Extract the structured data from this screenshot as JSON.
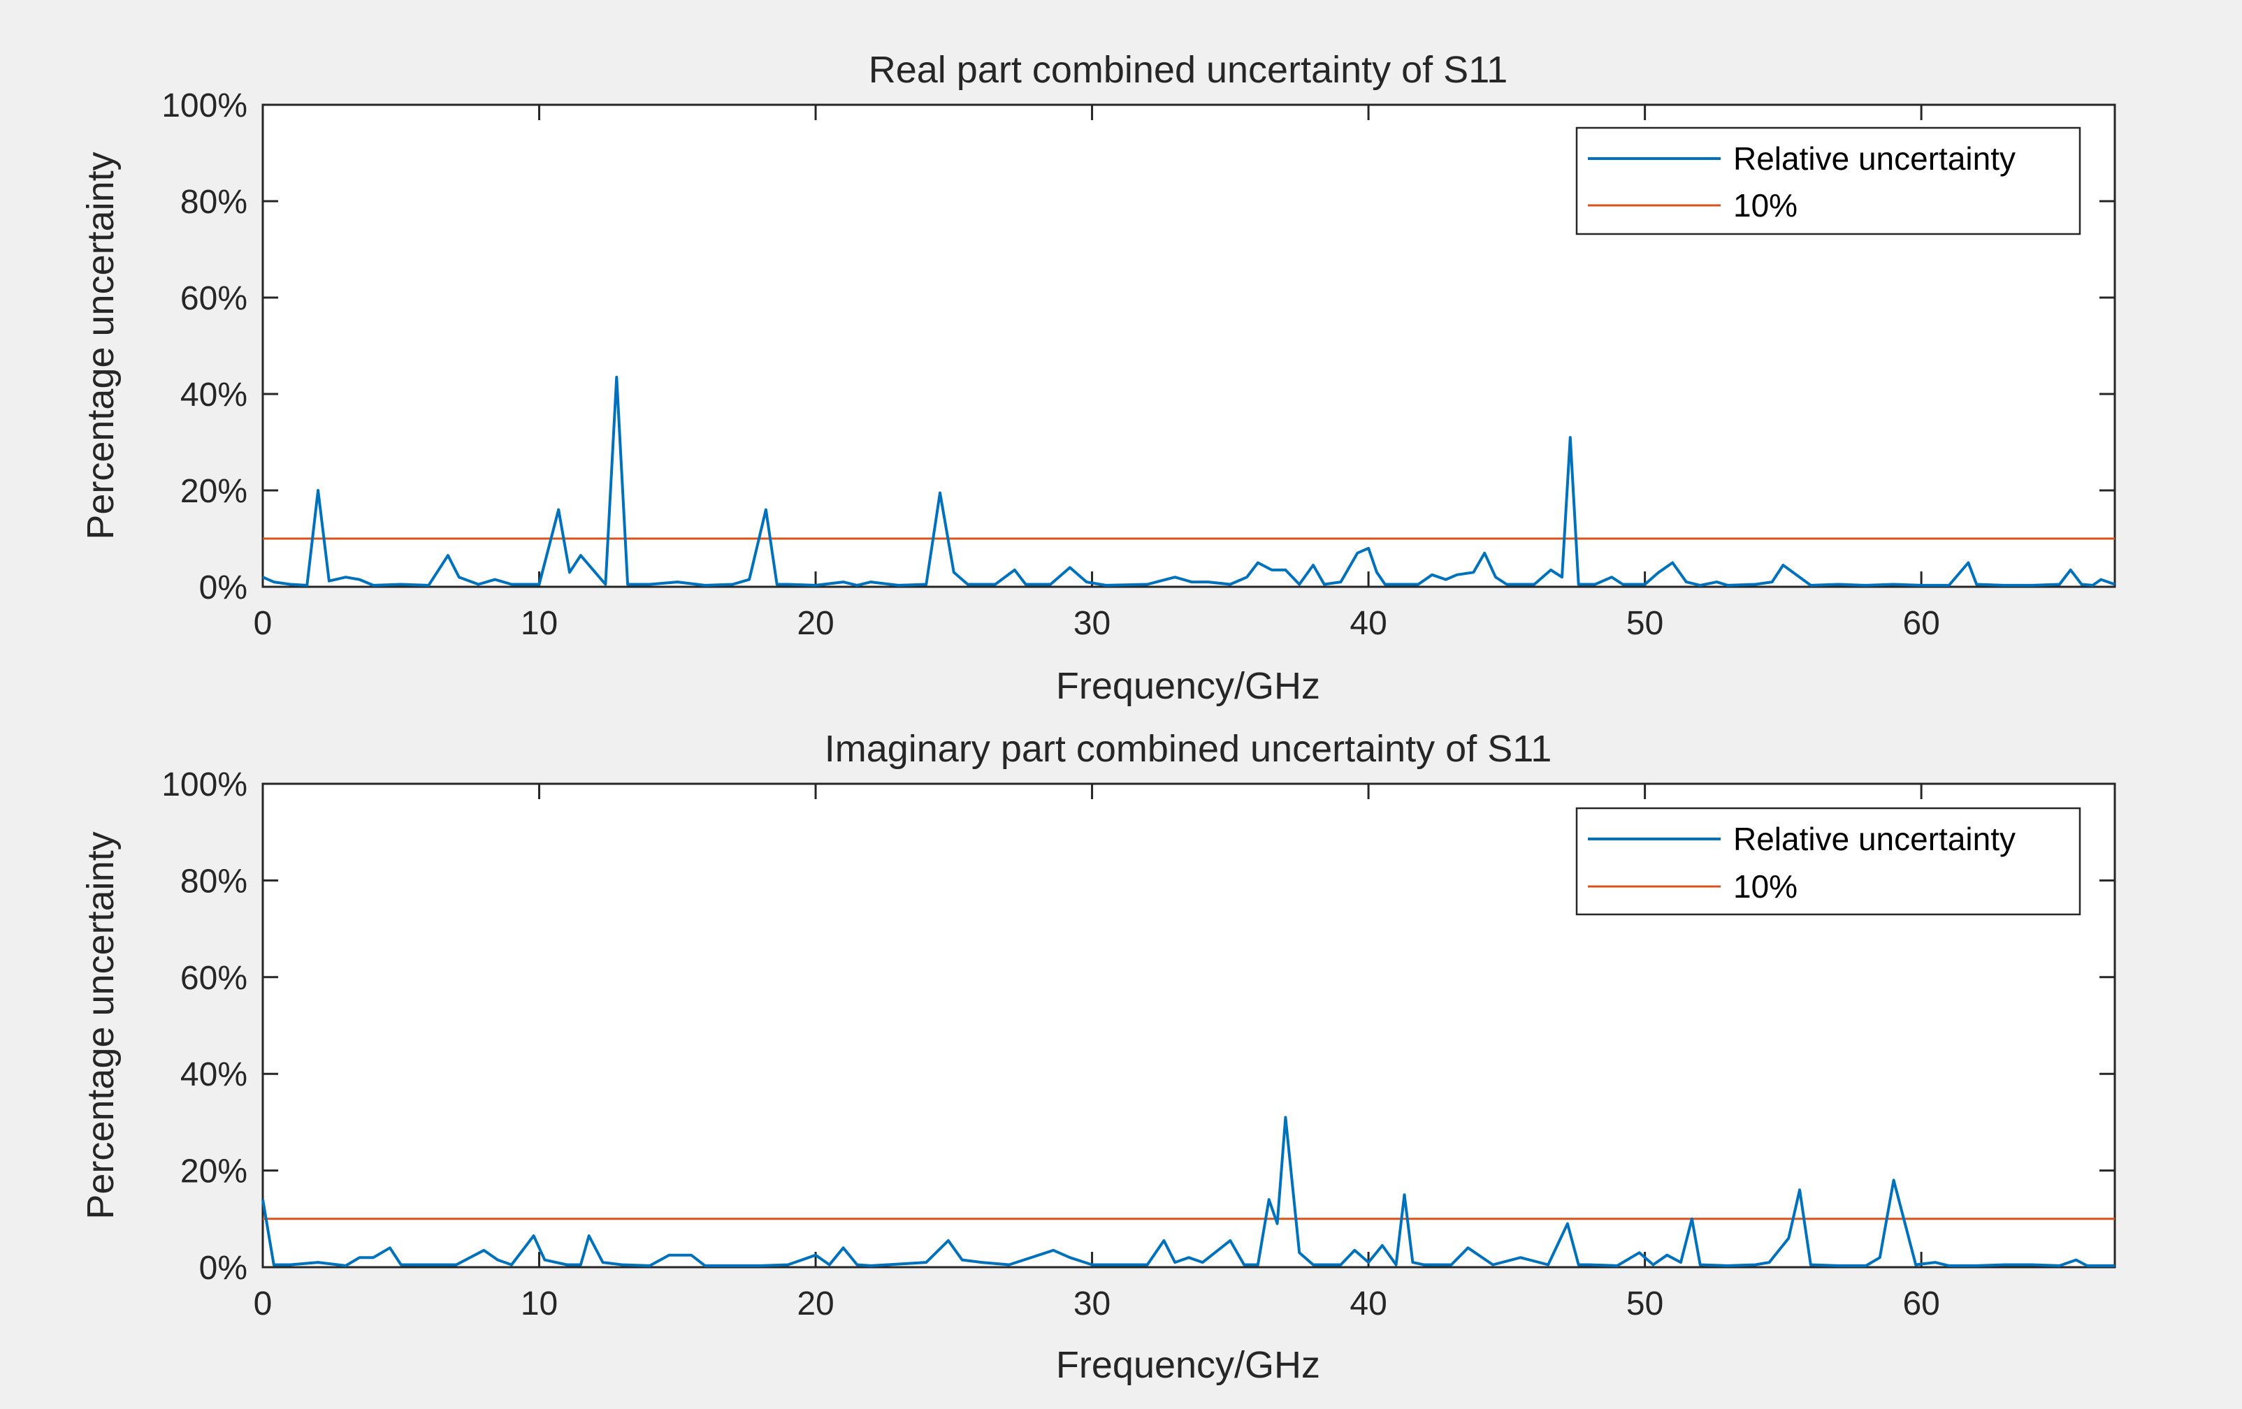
{
  "colors": {
    "figure_bg": "#f0f0f0",
    "axes_bg": "#ffffff",
    "axis": "#262626",
    "series_uncertainty": "#0072bd",
    "series_threshold": "#d95319"
  },
  "chart_data": [
    {
      "type": "line",
      "title": "Real part combined uncertainty of S11",
      "xlabel": "Frequency/GHz",
      "ylabel": "Percentage uncertainty",
      "xlim": [
        0,
        67
      ],
      "ylim": [
        0,
        100
      ],
      "xticks": [
        0,
        10,
        20,
        30,
        40,
        50,
        60
      ],
      "xtick_labels": [
        "0",
        "10",
        "20",
        "30",
        "40",
        "50",
        "60"
      ],
      "yticks": [
        0,
        20,
        40,
        60,
        80,
        100
      ],
      "ytick_labels": [
        "0%",
        "20%",
        "40%",
        "60%",
        "80%",
        "100%"
      ],
      "legend_position": "top-right",
      "series": [
        {
          "name": "Relative uncertainty",
          "x": [
            0,
            0.4,
            1.0,
            1.6,
            2.0,
            2.4,
            3.0,
            3.5,
            4.0,
            5.0,
            6.0,
            6.7,
            7.1,
            7.8,
            8.4,
            9.0,
            10.0,
            10.7,
            11.1,
            11.5,
            12.1,
            12.4,
            12.8,
            13.2,
            14.0,
            15.0,
            16.0,
            17.0,
            17.6,
            18.2,
            18.6,
            19.0,
            20.0,
            21.0,
            21.5,
            22.0,
            23.0,
            24.0,
            24.5,
            25.0,
            25.5,
            26.5,
            27.2,
            27.6,
            28.5,
            29.2,
            29.8,
            30.5,
            32.0,
            33.0,
            33.6,
            34.2,
            35.0,
            35.6,
            36.0,
            36.5,
            37.0,
            37.5,
            38.0,
            38.4,
            39.0,
            39.6,
            40.0,
            40.3,
            40.6,
            41.0,
            41.8,
            42.3,
            42.8,
            43.2,
            43.8,
            44.2,
            44.6,
            45.0,
            46.0,
            46.6,
            47.0,
            47.3,
            47.6,
            48.2,
            48.8,
            49.2,
            50.0,
            50.5,
            51.0,
            51.5,
            52.0,
            52.6,
            53.0,
            54.0,
            54.6,
            55.0,
            56.0,
            57.0,
            58.0,
            59.0,
            60.0,
            61.0,
            61.7,
            62.0,
            63.0,
            64.0,
            65.0,
            65.4,
            65.8,
            66.2,
            66.5,
            67.0
          ],
          "values": [
            2,
            1,
            0.5,
            0.3,
            20,
            1.2,
            2,
            1.5,
            0.3,
            0.5,
            0.3,
            6.5,
            2,
            0.5,
            1.5,
            0.5,
            0.5,
            16,
            3,
            6.5,
            2.5,
            0.5,
            43.5,
            0.5,
            0.5,
            1,
            0.3,
            0.5,
            1.5,
            16,
            0.5,
            0.5,
            0.3,
            1,
            0.3,
            1,
            0.3,
            0.5,
            19.5,
            3,
            0.5,
            0.5,
            3.5,
            0.5,
            0.5,
            4,
            1,
            0.3,
            0.5,
            2,
            1,
            1,
            0.5,
            2,
            5,
            3.5,
            3.5,
            0.5,
            4.5,
            0.5,
            1,
            7,
            8,
            3,
            0.5,
            0.5,
            0.5,
            2.5,
            1.5,
            2.5,
            3,
            7,
            2,
            0.5,
            0.5,
            3.5,
            2,
            31,
            0.5,
            0.5,
            2,
            0.5,
            0.5,
            3,
            5,
            1,
            0.3,
            1,
            0.3,
            0.5,
            1,
            4.5,
            0.3,
            0.5,
            0.3,
            0.5,
            0.3,
            0.3,
            5,
            0.5,
            0.3,
            0.3,
            0.5,
            3.5,
            0.5,
            0.3,
            1.5,
            0.5
          ]
        },
        {
          "name": "10%",
          "x": [
            0,
            67
          ],
          "values": [
            10,
            10
          ]
        }
      ]
    },
    {
      "type": "line",
      "title": "Imaginary part combined uncertainty of S11",
      "xlabel": "Frequency/GHz",
      "ylabel": "Percentage uncertainty",
      "xlim": [
        0,
        67
      ],
      "ylim": [
        0,
        100
      ],
      "xticks": [
        0,
        10,
        20,
        30,
        40,
        50,
        60
      ],
      "xtick_labels": [
        "0",
        "10",
        "20",
        "30",
        "40",
        "50",
        "60"
      ],
      "yticks": [
        0,
        20,
        40,
        60,
        80,
        100
      ],
      "ytick_labels": [
        "0%",
        "20%",
        "40%",
        "60%",
        "80%",
        "100%"
      ],
      "legend_position": "top-right",
      "series": [
        {
          "name": "Relative uncertainty",
          "x": [
            0,
            0.4,
            1.0,
            2.0,
            3.0,
            3.5,
            4.0,
            4.6,
            5.0,
            6.0,
            7.0,
            8.0,
            8.5,
            9.0,
            9.8,
            10.2,
            11.0,
            11.5,
            11.8,
            12.3,
            13.0,
            14.0,
            14.7,
            15.5,
            16.0,
            18.0,
            19.0,
            20.0,
            20.5,
            21.0,
            21.5,
            22.0,
            24.0,
            24.8,
            25.3,
            26.0,
            27.0,
            28.6,
            29.2,
            30.0,
            31.0,
            32.0,
            32.6,
            33.0,
            33.5,
            34.0,
            35.0,
            35.5,
            36.0,
            36.4,
            36.7,
            37.0,
            37.5,
            38.0,
            39.0,
            39.5,
            40.0,
            40.5,
            41.0,
            41.3,
            41.6,
            42.0,
            43.0,
            43.6,
            44.5,
            45.5,
            46.5,
            47.2,
            47.6,
            48.0,
            49.0,
            49.8,
            50.3,
            50.8,
            51.3,
            51.7,
            52.0,
            53.0,
            54.0,
            54.5,
            55.2,
            55.6,
            56.0,
            57.0,
            58.0,
            58.5,
            59.0,
            59.8,
            60.5,
            61.0,
            62.0,
            63.0,
            64.0,
            65.0,
            65.6,
            66.0,
            67.0
          ],
          "values": [
            14,
            0.5,
            0.5,
            1,
            0.3,
            2,
            2,
            4,
            0.5,
            0.5,
            0.5,
            3.5,
            1.5,
            0.5,
            6.5,
            1.5,
            0.5,
            0.5,
            6.5,
            1,
            0.5,
            0.3,
            2.5,
            2.5,
            0.3,
            0.3,
            0.5,
            2.5,
            0.5,
            4,
            0.5,
            0.3,
            1,
            5.5,
            1.5,
            1,
            0.5,
            3.5,
            2,
            0.5,
            0.5,
            0.5,
            5.5,
            1,
            2,
            1,
            5.5,
            0.5,
            0.5,
            14,
            9,
            31,
            3,
            0.5,
            0.5,
            3.5,
            1,
            4.5,
            0.5,
            15,
            1,
            0.5,
            0.5,
            4,
            0.5,
            2,
            0.5,
            9,
            0.5,
            0.5,
            0.3,
            3,
            0.5,
            2.5,
            1,
            10,
            0.5,
            0.3,
            0.5,
            1,
            6,
            16,
            0.5,
            0.3,
            0.3,
            2,
            18,
            0.5,
            1,
            0.3,
            0.3,
            0.5,
            0.5,
            0.3,
            1.5,
            0.3,
            0.3
          ]
        },
        {
          "name": "10%",
          "x": [
            0,
            67
          ],
          "values": [
            10,
            10
          ]
        }
      ]
    }
  ]
}
